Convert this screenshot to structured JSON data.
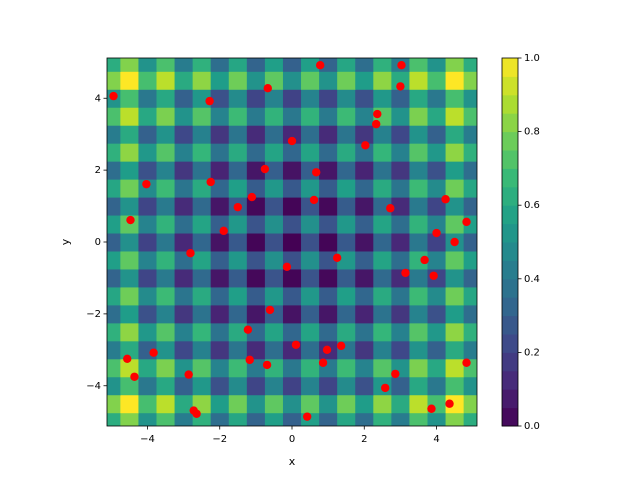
{
  "chart_data": {
    "type": "heatmap_scatter",
    "xlabel": "x",
    "ylabel": "y",
    "xlim": [
      -5.12,
      5.12
    ],
    "ylim": [
      -5.12,
      5.12
    ],
    "xticks": [
      {
        "value": -4,
        "label": "−4"
      },
      {
        "value": -2,
        "label": "−2"
      },
      0,
      2,
      4
    ],
    "yticks": [
      {
        "value": -4,
        "label": "−4"
      },
      {
        "value": -2,
        "label": "−2"
      },
      0,
      2,
      4
    ],
    "colormap": "viridis",
    "clim": [
      0,
      1
    ],
    "cticks": [
      {
        "value": 0,
        "label": "0.0"
      },
      {
        "value": 0.2,
        "label": "0.2"
      },
      {
        "value": 0.4,
        "label": "0.4"
      },
      {
        "value": 0.6,
        "label": "0.6"
      },
      {
        "value": 0.8,
        "label": "0.8"
      },
      {
        "value": 1,
        "label": "1.0"
      }
    ],
    "heatmap": {
      "x": [
        -5,
        -4.5,
        -4,
        -3.5,
        -3,
        -2.5,
        -2,
        -1.5,
        -1,
        -0.5,
        0,
        0.5,
        1,
        1.5,
        2,
        2.5,
        3,
        3.5,
        4,
        4.5,
        5
      ],
      "y": [
        -5,
        -4.5,
        -4,
        -3.5,
        -3,
        -2.5,
        -2,
        -1.5,
        -1,
        -0.5,
        0,
        0.5,
        1,
        1.5,
        2,
        2.5,
        3,
        3.5,
        4,
        4.5,
        5
      ],
      "z": [
        [
          0.62,
          0.81,
          0.51,
          0.71,
          0.42,
          0.64,
          0.36,
          0.59,
          0.32,
          0.56,
          0.31,
          0.56,
          0.32,
          0.59,
          0.36,
          0.64,
          0.42,
          0.71,
          0.51,
          0.81,
          0.62
        ],
        [
          0.81,
          1,
          0.7,
          0.9,
          0.61,
          0.83,
          0.55,
          0.78,
          0.51,
          0.75,
          0.5,
          0.75,
          0.51,
          0.78,
          0.55,
          0.83,
          0.61,
          0.9,
          0.7,
          1,
          0.81
        ],
        [
          0.51,
          0.7,
          0.4,
          0.6,
          0.31,
          0.53,
          0.25,
          0.48,
          0.21,
          0.45,
          0.2,
          0.45,
          0.21,
          0.48,
          0.25,
          0.53,
          0.31,
          0.6,
          0.4,
          0.7,
          0.51
        ],
        [
          0.71,
          0.9,
          0.6,
          0.8,
          0.51,
          0.73,
          0.45,
          0.68,
          0.41,
          0.65,
          0.4,
          0.65,
          0.41,
          0.68,
          0.45,
          0.73,
          0.51,
          0.8,
          0.6,
          0.9,
          0.71
        ],
        [
          0.42,
          0.61,
          0.31,
          0.51,
          0.22,
          0.44,
          0.16,
          0.39,
          0.12,
          0.36,
          0.11,
          0.36,
          0.12,
          0.39,
          0.16,
          0.44,
          0.22,
          0.51,
          0.31,
          0.61,
          0.42
        ],
        [
          0.64,
          0.83,
          0.53,
          0.73,
          0.44,
          0.66,
          0.38,
          0.61,
          0.34,
          0.58,
          0.33,
          0.58,
          0.34,
          0.61,
          0.38,
          0.66,
          0.44,
          0.73,
          0.53,
          0.83,
          0.64
        ],
        [
          0.36,
          0.55,
          0.25,
          0.45,
          0.16,
          0.38,
          0.1,
          0.33,
          0.06,
          0.3,
          0.05,
          0.3,
          0.06,
          0.33,
          0.1,
          0.38,
          0.16,
          0.45,
          0.25,
          0.55,
          0.36
        ],
        [
          0.59,
          0.78,
          0.48,
          0.68,
          0.39,
          0.61,
          0.33,
          0.56,
          0.29,
          0.53,
          0.28,
          0.53,
          0.29,
          0.56,
          0.33,
          0.61,
          0.39,
          0.68,
          0.48,
          0.78,
          0.59
        ],
        [
          0.32,
          0.51,
          0.21,
          0.41,
          0.12,
          0.34,
          0.06,
          0.29,
          0.02,
          0.26,
          0.01,
          0.26,
          0.02,
          0.29,
          0.06,
          0.34,
          0.12,
          0.41,
          0.21,
          0.51,
          0.32
        ],
        [
          0.56,
          0.75,
          0.45,
          0.65,
          0.36,
          0.58,
          0.3,
          0.53,
          0.26,
          0.5,
          0.25,
          0.5,
          0.26,
          0.53,
          0.3,
          0.58,
          0.36,
          0.65,
          0.45,
          0.75,
          0.56
        ],
        [
          0.31,
          0.5,
          0.2,
          0.4,
          0.11,
          0.33,
          0.05,
          0.28,
          0.01,
          0.25,
          0,
          0.25,
          0.01,
          0.28,
          0.05,
          0.33,
          0.11,
          0.4,
          0.2,
          0.5,
          0.31
        ],
        [
          0.56,
          0.75,
          0.45,
          0.65,
          0.36,
          0.58,
          0.3,
          0.53,
          0.26,
          0.5,
          0.25,
          0.5,
          0.26,
          0.53,
          0.3,
          0.58,
          0.36,
          0.65,
          0.45,
          0.75,
          0.56
        ],
        [
          0.32,
          0.51,
          0.21,
          0.41,
          0.12,
          0.34,
          0.06,
          0.29,
          0.02,
          0.26,
          0.01,
          0.26,
          0.02,
          0.29,
          0.06,
          0.34,
          0.12,
          0.41,
          0.21,
          0.51,
          0.32
        ],
        [
          0.59,
          0.78,
          0.48,
          0.68,
          0.39,
          0.61,
          0.33,
          0.56,
          0.29,
          0.53,
          0.28,
          0.53,
          0.29,
          0.56,
          0.33,
          0.61,
          0.39,
          0.68,
          0.48,
          0.78,
          0.59
        ],
        [
          0.36,
          0.55,
          0.25,
          0.45,
          0.16,
          0.38,
          0.1,
          0.33,
          0.06,
          0.3,
          0.05,
          0.3,
          0.06,
          0.33,
          0.1,
          0.38,
          0.16,
          0.45,
          0.25,
          0.55,
          0.36
        ],
        [
          0.64,
          0.83,
          0.53,
          0.73,
          0.44,
          0.66,
          0.38,
          0.61,
          0.34,
          0.58,
          0.33,
          0.58,
          0.34,
          0.61,
          0.38,
          0.66,
          0.44,
          0.73,
          0.53,
          0.83,
          0.64
        ],
        [
          0.42,
          0.61,
          0.31,
          0.51,
          0.22,
          0.44,
          0.16,
          0.39,
          0.12,
          0.36,
          0.11,
          0.36,
          0.12,
          0.39,
          0.16,
          0.44,
          0.22,
          0.51,
          0.31,
          0.61,
          0.42
        ],
        [
          0.71,
          0.9,
          0.6,
          0.8,
          0.51,
          0.73,
          0.45,
          0.68,
          0.41,
          0.65,
          0.4,
          0.65,
          0.41,
          0.68,
          0.45,
          0.73,
          0.51,
          0.8,
          0.6,
          0.9,
          0.71
        ],
        [
          0.51,
          0.7,
          0.4,
          0.6,
          0.31,
          0.53,
          0.25,
          0.48,
          0.21,
          0.45,
          0.2,
          0.45,
          0.21,
          0.48,
          0.25,
          0.53,
          0.31,
          0.6,
          0.4,
          0.7,
          0.51
        ],
        [
          0.81,
          1,
          0.7,
          0.9,
          0.61,
          0.83,
          0.55,
          0.78,
          0.51,
          0.75,
          0.5,
          0.75,
          0.51,
          0.78,
          0.55,
          0.83,
          0.61,
          0.9,
          0.7,
          1,
          0.81
        ],
        [
          0.62,
          0.81,
          0.51,
          0.71,
          0.42,
          0.64,
          0.36,
          0.59,
          0.32,
          0.56,
          0.31,
          0.56,
          0.32,
          0.59,
          0.36,
          0.64,
          0.42,
          0.71,
          0.51,
          0.81,
          0.62
        ]
      ]
    },
    "points": {
      "color": "#ff0000",
      "x": [
        -4.94,
        -2.28,
        -0.67,
        0.78,
        3.03,
        3.0,
        2.36,
        2.33,
        2.03,
        0,
        -0.75,
        0.67,
        -4.03,
        -2.25,
        -1.11,
        -1.5,
        0.61,
        2.72,
        4.25,
        -4.47,
        -1.89,
        4.83,
        4.0,
        4.5,
        -2.81,
        -0.14,
        1.25,
        3.67,
        3.14,
        3.92,
        -0.61,
        -1.22,
        0.11,
        1.36,
        0.97,
        -3.83,
        -4.56,
        -1.17,
        -0.69,
        0.86,
        4.83,
        -4.36,
        -2.86,
        2.86,
        2.58,
        3.86,
        4.36,
        -2.72,
        -2.64,
        0.42
      ],
      "y": [
        4.06,
        3.92,
        4.28,
        4.92,
        4.92,
        4.33,
        3.56,
        3.28,
        2.69,
        2.81,
        2.03,
        1.94,
        1.61,
        1.67,
        1.25,
        0.97,
        1.17,
        0.94,
        1.19,
        0.61,
        0.31,
        0.56,
        0.25,
        0,
        -0.31,
        -0.69,
        -0.44,
        -0.5,
        -0.86,
        -0.94,
        -1.89,
        -2.44,
        -2.86,
        -2.89,
        -3.0,
        -3.08,
        -3.25,
        -3.28,
        -3.42,
        -3.36,
        -3.36,
        -3.75,
        -3.69,
        -3.67,
        -4.06,
        -4.64,
        -4.5,
        -4.69,
        -4.78,
        -4.86
      ]
    }
  }
}
